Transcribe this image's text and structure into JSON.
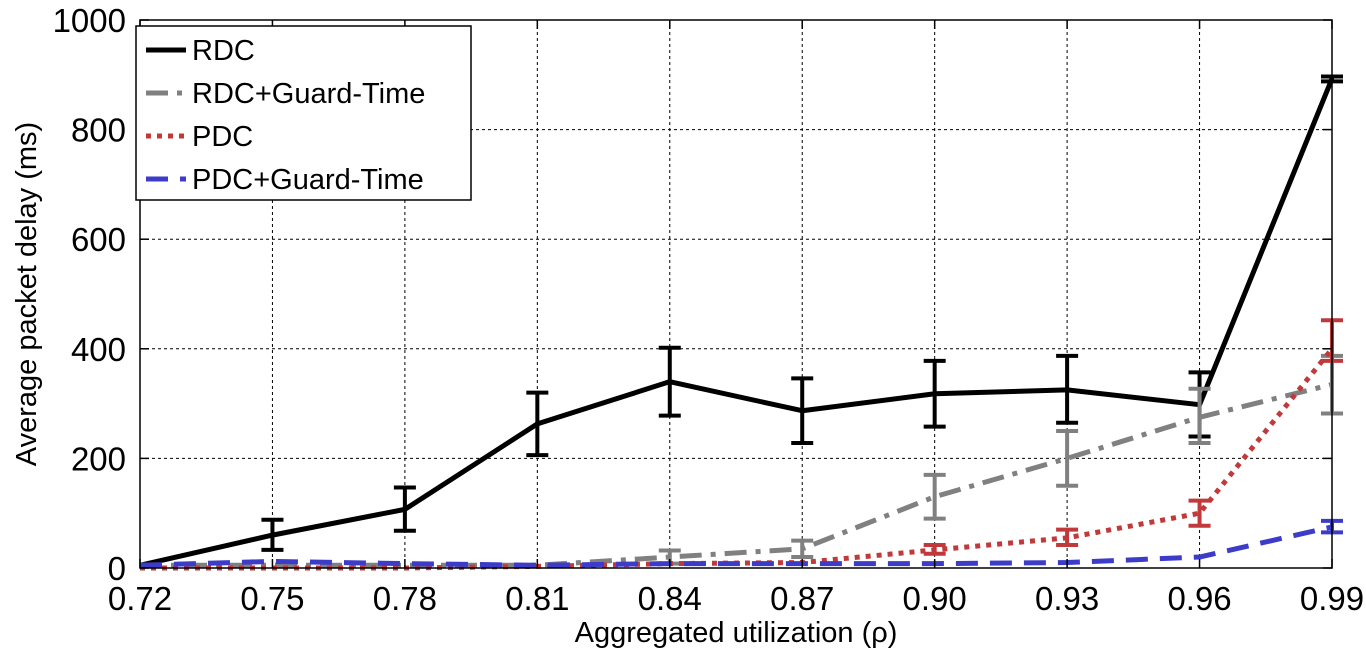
{
  "chart_data": {
    "type": "line",
    "xlabel": "Aggregated utilization (ρ)",
    "ylabel": "Average packet delay (ms)",
    "x": [
      0.72,
      0.75,
      0.78,
      0.81,
      0.84,
      0.87,
      0.9,
      0.93,
      0.96,
      0.99
    ],
    "x_tick_labels": [
      "0.72",
      "0.75",
      "0.78",
      "0.81",
      "0.84",
      "0.87",
      "0.90",
      "0.93",
      "0.96",
      "0.99"
    ],
    "ylim": [
      0,
      1000
    ],
    "y_ticks": [
      0,
      200,
      400,
      600,
      800,
      1000
    ],
    "y_tick_labels": [
      "0",
      "200",
      "400",
      "600",
      "800",
      "1000"
    ],
    "grid": true,
    "legend_position": "top-left",
    "series": [
      {
        "name": "RDC",
        "color": "#000000",
        "dash": "solid",
        "values": [
          5,
          60,
          107,
          263,
          340,
          287,
          318,
          325,
          298,
          893
        ],
        "errors": [
          [
            null,
            null
          ],
          [
            33,
            88
          ],
          [
            68,
            147
          ],
          [
            206,
            320
          ],
          [
            278,
            402
          ],
          [
            228,
            346
          ],
          [
            258,
            378
          ],
          [
            265,
            387
          ],
          [
            240,
            357
          ],
          [
            888,
            897
          ]
        ]
      },
      {
        "name": "RDC+Guard-Time",
        "color": "#808080",
        "dash": "dashdot",
        "values": [
          5,
          5,
          5,
          5,
          20,
          35,
          130,
          200,
          275,
          335
        ],
        "errors": [
          [
            null,
            null
          ],
          [
            null,
            null
          ],
          [
            null,
            null
          ],
          [
            null,
            null
          ],
          [
            8,
            32
          ],
          [
            20,
            50
          ],
          [
            90,
            170
          ],
          [
            150,
            250
          ],
          [
            228,
            327
          ],
          [
            282,
            387
          ]
        ]
      },
      {
        "name": "PDC",
        "color": "#c0393b",
        "dash": "dotted",
        "values": [
          0,
          0,
          0,
          3,
          8,
          10,
          33,
          55,
          100,
          400
        ],
        "errors": [
          [
            null,
            null
          ],
          [
            null,
            null
          ],
          [
            null,
            null
          ],
          [
            null,
            null
          ],
          [
            null,
            null
          ],
          [
            null,
            null
          ],
          [
            26,
            42
          ],
          [
            42,
            70
          ],
          [
            77,
            123
          ],
          [
            378,
            452
          ]
        ]
      },
      {
        "name": "PDC+Guard-Time",
        "color": "#3c3cc8",
        "dash": "dashed",
        "values": [
          5,
          12,
          8,
          5,
          8,
          8,
          8,
          10,
          20,
          75
        ],
        "errors": [
          [
            null,
            null
          ],
          [
            null,
            null
          ],
          [
            null,
            null
          ],
          [
            null,
            null
          ],
          [
            null,
            null
          ],
          [
            null,
            null
          ],
          [
            null,
            null
          ],
          [
            null,
            null
          ],
          [
            null,
            null
          ],
          [
            65,
            86
          ]
        ]
      }
    ]
  }
}
